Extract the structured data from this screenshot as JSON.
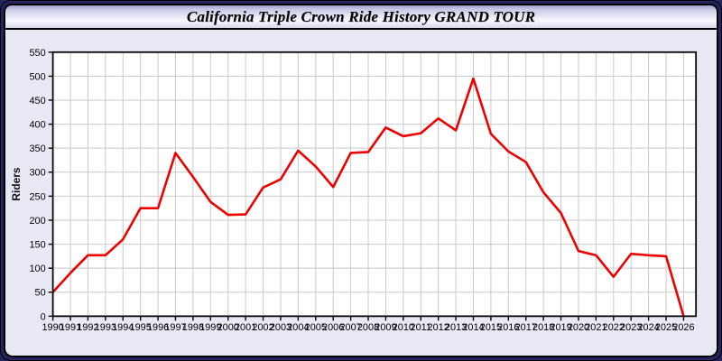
{
  "window": {
    "title": "California Triple Crown Ride History GRAND TOUR"
  },
  "chart_data": {
    "type": "line",
    "title": "California Triple Crown Ride History GRAND TOUR",
    "xlabel": "",
    "ylabel": "Riders",
    "x": [
      1990,
      1991,
      1992,
      1993,
      1994,
      1995,
      1996,
      1997,
      1998,
      1999,
      2000,
      2001,
      2002,
      2003,
      2004,
      2005,
      2006,
      2007,
      2008,
      2009,
      2010,
      2011,
      2012,
      2013,
      2014,
      2015,
      2016,
      2017,
      2018,
      2019,
      2020,
      2021,
      2022,
      2023,
      2024,
      2025,
      2026
    ],
    "series": [
      {
        "name": "Riders",
        "color": "#ee0000",
        "values": [
          50,
          90,
          127,
          127,
          160,
          225,
          225,
          340,
          290,
          238,
          211,
          212,
          268,
          285,
          345,
          312,
          269,
          340,
          342,
          393,
          375,
          381,
          412,
          387,
          495,
          380,
          343,
          321,
          258,
          215,
          136,
          127,
          82,
          130,
          127,
          125,
          0
        ]
      }
    ],
    "ylim": [
      0,
      550
    ],
    "ytick_step": 50,
    "grid": true,
    "legend": "none",
    "plot_bg": "#ffffff",
    "grid_color": "#c9c9c9",
    "frame_color": "#000000",
    "tick_label_color": "#000000"
  }
}
